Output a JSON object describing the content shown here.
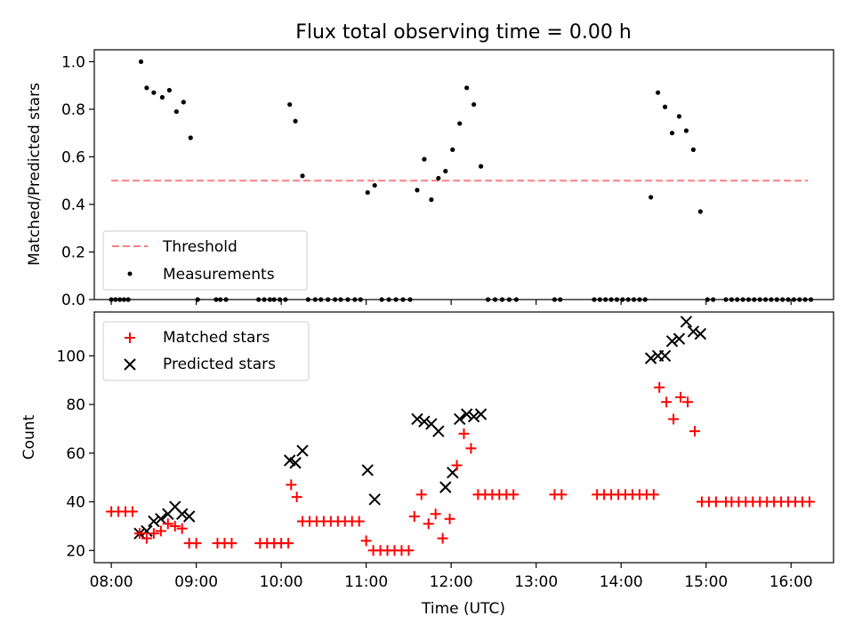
{
  "figure": {
    "title": "Flux total observing time = 0.00 h"
  },
  "chart_data": [
    {
      "type": "scatter",
      "panel": "top",
      "ylabel": "Matched/Predicted stars",
      "xlabel": "",
      "xlim": [
        "07:48",
        "16:30"
      ],
      "ylim": [
        0,
        1.05
      ],
      "x_ticks": [
        "08:00",
        "09:00",
        "10:00",
        "11:00",
        "12:00",
        "13:00",
        "14:00",
        "15:00",
        "16:00"
      ],
      "y_ticks": [
        "0.0",
        "0.2",
        "0.4",
        "0.6",
        "0.8",
        "1.0"
      ],
      "legend_placement": "lower-left",
      "colors": {
        "threshold": "#ff7f7f",
        "measurements": "#000000"
      },
      "threshold": {
        "name": "Threshold",
        "y": 0.5,
        "x_range": [
          "08:00",
          "16:12"
        ]
      },
      "series": [
        {
          "name": "Measurements",
          "points": [
            [
              "08:00",
              0
            ],
            [
              "08:03",
              0
            ],
            [
              "08:06",
              0
            ],
            [
              "08:09",
              0
            ],
            [
              "08:12",
              0
            ],
            [
              "08:21",
              1.0
            ],
            [
              "08:25",
              0.89
            ],
            [
              "08:30",
              0.87
            ],
            [
              "08:36",
              0.85
            ],
            [
              "08:41",
              0.88
            ],
            [
              "08:46",
              0.79
            ],
            [
              "08:51",
              0.83
            ],
            [
              "08:56",
              0.68
            ],
            [
              "09:01",
              0
            ],
            [
              "09:14",
              0
            ],
            [
              "09:17",
              0
            ],
            [
              "09:21",
              0
            ],
            [
              "09:44",
              0
            ],
            [
              "09:48",
              0
            ],
            [
              "09:52",
              0
            ],
            [
              "09:55",
              0
            ],
            [
              "09:59",
              0
            ],
            [
              "10:03",
              0
            ],
            [
              "10:06",
              0.82
            ],
            [
              "10:10",
              0.75
            ],
            [
              "10:15",
              0.52
            ],
            [
              "10:19",
              0
            ],
            [
              "10:24",
              0
            ],
            [
              "10:28",
              0
            ],
            [
              "10:33",
              0
            ],
            [
              "10:38",
              0
            ],
            [
              "10:42",
              0
            ],
            [
              "10:47",
              0
            ],
            [
              "10:52",
              0
            ],
            [
              "10:56",
              0
            ],
            [
              "11:01",
              0.45
            ],
            [
              "11:06",
              0.48
            ],
            [
              "11:11",
              0
            ],
            [
              "11:16",
              0
            ],
            [
              "11:21",
              0
            ],
            [
              "11:26",
              0
            ],
            [
              "11:31",
              0
            ],
            [
              "11:36",
              0.46
            ],
            [
              "11:41",
              0.59
            ],
            [
              "11:46",
              0.42
            ],
            [
              "11:51",
              0.51
            ],
            [
              "11:56",
              0.54
            ],
            [
              "12:01",
              0.63
            ],
            [
              "12:06",
              0.74
            ],
            [
              "12:11",
              0.89
            ],
            [
              "12:16",
              0.82
            ],
            [
              "12:21",
              0.56
            ],
            [
              "12:26",
              0
            ],
            [
              "12:31",
              0
            ],
            [
              "12:36",
              0
            ],
            [
              "12:41",
              0
            ],
            [
              "12:46",
              0
            ],
            [
              "13:13",
              0
            ],
            [
              "13:17",
              0
            ],
            [
              "13:41",
              0
            ],
            [
              "13:45",
              0
            ],
            [
              "13:49",
              0
            ],
            [
              "13:53",
              0
            ],
            [
              "13:57",
              0
            ],
            [
              "14:01",
              0
            ],
            [
              "14:05",
              0
            ],
            [
              "14:09",
              0
            ],
            [
              "14:13",
              0
            ],
            [
              "14:17",
              0
            ],
            [
              "14:21",
              0.43
            ],
            [
              "14:26",
              0.87
            ],
            [
              "14:31",
              0.81
            ],
            [
              "14:36",
              0.7
            ],
            [
              "14:41",
              0.77
            ],
            [
              "14:46",
              0.71
            ],
            [
              "14:51",
              0.63
            ],
            [
              "14:56",
              0.37
            ],
            [
              "15:01",
              0
            ],
            [
              "15:05",
              0
            ],
            [
              "15:14",
              0
            ],
            [
              "15:18",
              0
            ],
            [
              "15:22",
              0
            ],
            [
              "15:26",
              0
            ],
            [
              "15:30",
              0
            ],
            [
              "15:34",
              0
            ],
            [
              "15:38",
              0
            ],
            [
              "15:42",
              0
            ],
            [
              "15:46",
              0
            ],
            [
              "15:50",
              0
            ],
            [
              "15:54",
              0
            ],
            [
              "15:58",
              0
            ],
            [
              "16:02",
              0
            ],
            [
              "16:06",
              0
            ],
            [
              "16:10",
              0
            ],
            [
              "16:14",
              0
            ]
          ]
        }
      ]
    },
    {
      "type": "scatter",
      "panel": "bottom",
      "ylabel": "Count",
      "xlabel": "Time (UTC)",
      "xlim": [
        "07:48",
        "16:30"
      ],
      "ylim": [
        15,
        118
      ],
      "x_ticks": [
        "08:00",
        "09:00",
        "10:00",
        "11:00",
        "12:00",
        "13:00",
        "14:00",
        "15:00",
        "16:00"
      ],
      "y_ticks": [
        "20",
        "40",
        "60",
        "80",
        "100"
      ],
      "legend_placement": "upper-left",
      "colors": {
        "matched": "#ff0000",
        "predicted": "#000000"
      },
      "series": [
        {
          "name": "Matched stars",
          "marker": "plus",
          "points": [
            [
              "08:00",
              36
            ],
            [
              "08:05",
              36
            ],
            [
              "08:10",
              36
            ],
            [
              "08:15",
              36
            ],
            [
              "08:20",
              27
            ],
            [
              "08:25",
              25
            ],
            [
              "08:30",
              27
            ],
            [
              "08:35",
              28
            ],
            [
              "08:40",
              31
            ],
            [
              "08:45",
              30
            ],
            [
              "08:50",
              29
            ],
            [
              "08:55",
              23
            ],
            [
              "09:00",
              23
            ],
            [
              "09:15",
              23
            ],
            [
              "09:20",
              23
            ],
            [
              "09:25",
              23
            ],
            [
              "09:45",
              23
            ],
            [
              "09:50",
              23
            ],
            [
              "09:55",
              23
            ],
            [
              "10:00",
              23
            ],
            [
              "10:05",
              23
            ],
            [
              "10:07",
              47
            ],
            [
              "10:11",
              42
            ],
            [
              "10:15",
              32
            ],
            [
              "10:20",
              32
            ],
            [
              "10:25",
              32
            ],
            [
              "10:30",
              32
            ],
            [
              "10:35",
              32
            ],
            [
              "10:40",
              32
            ],
            [
              "10:45",
              32
            ],
            [
              "10:50",
              32
            ],
            [
              "10:55",
              32
            ],
            [
              "11:00",
              24
            ],
            [
              "11:05",
              20
            ],
            [
              "11:10",
              20
            ],
            [
              "11:15",
              20
            ],
            [
              "11:20",
              20
            ],
            [
              "11:25",
              20
            ],
            [
              "11:30",
              20
            ],
            [
              "11:34",
              34
            ],
            [
              "11:39",
              43
            ],
            [
              "11:44",
              31
            ],
            [
              "11:49",
              35
            ],
            [
              "11:54",
              25
            ],
            [
              "11:59",
              33
            ],
            [
              "12:04",
              55
            ],
            [
              "12:09",
              68
            ],
            [
              "12:14",
              62
            ],
            [
              "12:19",
              43
            ],
            [
              "12:24",
              43
            ],
            [
              "12:29",
              43
            ],
            [
              "12:34",
              43
            ],
            [
              "12:39",
              43
            ],
            [
              "12:44",
              43
            ],
            [
              "13:13",
              43
            ],
            [
              "13:18",
              43
            ],
            [
              "13:43",
              43
            ],
            [
              "13:48",
              43
            ],
            [
              "13:53",
              43
            ],
            [
              "13:58",
              43
            ],
            [
              "14:03",
              43
            ],
            [
              "14:08",
              43
            ],
            [
              "14:13",
              43
            ],
            [
              "14:18",
              43
            ],
            [
              "14:23",
              43
            ],
            [
              "14:27",
              87
            ],
            [
              "14:32",
              81
            ],
            [
              "14:37",
              74
            ],
            [
              "14:42",
              83
            ],
            [
              "14:47",
              81
            ],
            [
              "14:52",
              69
            ],
            [
              "14:57",
              40
            ],
            [
              "15:02",
              40
            ],
            [
              "15:07",
              40
            ],
            [
              "15:14",
              40
            ],
            [
              "15:18",
              40
            ],
            [
              "15:23",
              40
            ],
            [
              "15:28",
              40
            ],
            [
              "15:33",
              40
            ],
            [
              "15:38",
              40
            ],
            [
              "15:43",
              40
            ],
            [
              "15:48",
              40
            ],
            [
              "15:53",
              40
            ],
            [
              "15:58",
              40
            ],
            [
              "16:03",
              40
            ],
            [
              "16:08",
              40
            ],
            [
              "16:13",
              40
            ]
          ]
        },
        {
          "name": "Predicted stars",
          "marker": "x",
          "points": [
            [
              "08:20",
              27
            ],
            [
              "08:25",
              28
            ],
            [
              "08:30",
              32
            ],
            [
              "08:35",
              33
            ],
            [
              "08:40",
              35
            ],
            [
              "08:45",
              38
            ],
            [
              "08:50",
              35
            ],
            [
              "08:55",
              34
            ],
            [
              "10:06",
              57
            ],
            [
              "10:10",
              56
            ],
            [
              "10:15",
              61
            ],
            [
              "11:01",
              53
            ],
            [
              "11:06",
              41
            ],
            [
              "11:36",
              74
            ],
            [
              "11:41",
              73
            ],
            [
              "11:46",
              72
            ],
            [
              "11:51",
              69
            ],
            [
              "11:56",
              46
            ],
            [
              "12:01",
              52
            ],
            [
              "12:06",
              74
            ],
            [
              "12:11",
              76
            ],
            [
              "12:16",
              75
            ],
            [
              "12:21",
              76
            ],
            [
              "14:21",
              99
            ],
            [
              "14:26",
              100
            ],
            [
              "14:31",
              100
            ],
            [
              "14:36",
              106
            ],
            [
              "14:41",
              107
            ],
            [
              "14:46",
              114
            ],
            [
              "14:51",
              110
            ],
            [
              "14:56",
              109
            ]
          ]
        }
      ]
    }
  ]
}
